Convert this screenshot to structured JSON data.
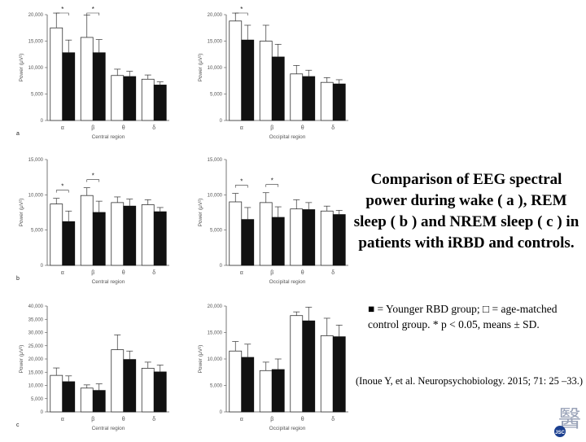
{
  "caption": {
    "title": "Comparison of EEG spectral power during wake ( a ), REM sleep ( b ) and NREM sleep ( c ) in patients with iRBD and controls.",
    "legend": "■ = Younger RBD group; □ = age-matched control group. * p < 0.05, means ± SD.",
    "citation": "(Inoue Y, et al. Neuropsychobiology. 2015; 71: 25 –33.)"
  },
  "logo": {
    "text": "醫",
    "label": "JSC"
  },
  "colors": {
    "rbd": "#111111",
    "control": "#ffffff",
    "axis": "#555555"
  },
  "chart_data": [
    {
      "type": "bar",
      "panel_label": "a",
      "xlabel": "Central region",
      "ylabel": "Power (μV²)",
      "categories": [
        "α",
        "β",
        "θ",
        "δ"
      ],
      "ylim": [
        0,
        20000
      ],
      "yticks": [
        0,
        5000,
        10000,
        15000,
        20000
      ],
      "tick_labels": [
        "0",
        "5,000",
        "10,000",
        "15,000",
        "20,000"
      ],
      "significant": [
        true,
        true,
        false,
        false
      ],
      "series": [
        {
          "values": [
            17500,
            15700,
            8500,
            7800
          ],
          "sd": [
            2800,
            4200,
            1200,
            800
          ]
        },
        {
          "values": [
            12800,
            12800,
            8300,
            6700
          ],
          "sd": [
            2400,
            2500,
            1000,
            600
          ]
        }
      ]
    },
    {
      "type": "bar",
      "panel_label": "",
      "xlabel": "Occipital region",
      "ylabel": "Power (μV²)",
      "categories": [
        "α",
        "β",
        "θ",
        "δ"
      ],
      "ylim": [
        0,
        20000
      ],
      "yticks": [
        0,
        5000,
        10000,
        15000,
        20000
      ],
      "tick_labels": [
        "0",
        "5,000",
        "10,000",
        "15,000",
        "20,000"
      ],
      "significant": [
        true,
        false,
        false,
        false
      ],
      "series": [
        {
          "values": [
            18800,
            15000,
            8800,
            7200
          ],
          "sd": [
            1500,
            3000,
            1600,
            900
          ]
        },
        {
          "values": [
            15200,
            12000,
            8300,
            6900
          ],
          "sd": [
            2800,
            2400,
            1200,
            800
          ]
        }
      ]
    },
    {
      "type": "bar",
      "panel_label": "b",
      "xlabel": "Central region",
      "ylabel": "Power (μV²)",
      "categories": [
        "α",
        "β",
        "θ",
        "δ"
      ],
      "ylim": [
        0,
        15000
      ],
      "yticks": [
        0,
        5000,
        10000,
        15000
      ],
      "tick_labels": [
        "0",
        "5,000",
        "10,000",
        "15,000"
      ],
      "significant": [
        true,
        true,
        false,
        false
      ],
      "series": [
        {
          "values": [
            8700,
            9900,
            8900,
            8600
          ],
          "sd": [
            800,
            1100,
            800,
            700
          ]
        },
        {
          "values": [
            6200,
            7500,
            8400,
            7600
          ],
          "sd": [
            1500,
            1600,
            1000,
            600
          ]
        }
      ]
    },
    {
      "type": "bar",
      "panel_label": "",
      "xlabel": "Occipital region",
      "ylabel": "Power (μV²)",
      "categories": [
        "α",
        "β",
        "θ",
        "δ"
      ],
      "ylim": [
        0,
        15000
      ],
      "yticks": [
        0,
        5000,
        10000,
        15000
      ],
      "tick_labels": [
        "0",
        "5,000",
        "10,000",
        "15,000"
      ],
      "significant": [
        true,
        true,
        false,
        false
      ],
      "series": [
        {
          "values": [
            9000,
            8900,
            8000,
            7700
          ],
          "sd": [
            1200,
            1400,
            1300,
            700
          ]
        },
        {
          "values": [
            6500,
            6800,
            7900,
            7200
          ],
          "sd": [
            1700,
            1500,
            1000,
            600
          ]
        }
      ]
    },
    {
      "type": "bar",
      "panel_label": "c",
      "xlabel": "Central region",
      "ylabel": "Power (μV²)",
      "categories": [
        "α",
        "β",
        "θ",
        "δ"
      ],
      "ylim": [
        0,
        40000
      ],
      "yticks": [
        0,
        5000,
        10000,
        15000,
        20000,
        25000,
        30000,
        35000,
        40000
      ],
      "tick_labels": [
        "0",
        "5,000",
        "10,000",
        "15,000",
        "20,000",
        "25,000",
        "30,000",
        "35,000",
        "40,000"
      ],
      "significant": [
        false,
        false,
        false,
        false
      ],
      "series": [
        {
          "values": [
            13800,
            9000,
            23500,
            16500
          ],
          "sd": [
            2800,
            1200,
            5600,
            2300
          ]
        },
        {
          "values": [
            11400,
            8100,
            19800,
            15100
          ],
          "sd": [
            2200,
            2500,
            3200,
            2600
          ]
        }
      ]
    },
    {
      "type": "bar",
      "panel_label": "",
      "xlabel": "Occipital region",
      "ylabel": "Power (μV²)",
      "categories": [
        "α",
        "β",
        "θ",
        "δ"
      ],
      "ylim": [
        0,
        20000
      ],
      "yticks": [
        0,
        5000,
        10000,
        15000,
        20000
      ],
      "tick_labels": [
        "0",
        "5,000",
        "10,000",
        "15,000",
        "20,000"
      ],
      "significant": [
        false,
        false,
        false,
        false
      ],
      "series": [
        {
          "values": [
            11500,
            7800,
            18200,
            14400
          ],
          "sd": [
            1800,
            1600,
            700,
            3300
          ]
        },
        {
          "values": [
            10300,
            8000,
            17200,
            14200
          ],
          "sd": [
            2500,
            2000,
            2600,
            2200
          ]
        }
      ]
    }
  ]
}
